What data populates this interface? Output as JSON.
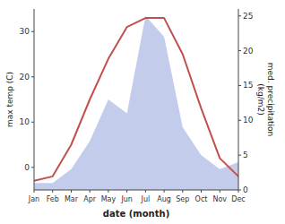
{
  "chart_data": {
    "type": "line",
    "categories": [
      "Jan",
      "Feb",
      "Mar",
      "Apr",
      "May",
      "Jun",
      "Jul",
      "Aug",
      "Sep",
      "Oct",
      "Nov",
      "Dec"
    ],
    "series": [
      {
        "type": "area",
        "axis": "y2",
        "color": "#b8c4e8",
        "values": [
          1,
          1,
          3,
          7,
          13,
          11,
          25,
          22,
          9,
          5,
          3,
          4
        ]
      },
      {
        "type": "line",
        "color": "#c0504d",
        "values": [
          -3,
          -2,
          5,
          15,
          24,
          31,
          33,
          33,
          25,
          13,
          2,
          -2
        ]
      }
    ],
    "x_label": "date (month)",
    "y_label": "max temp (C)",
    "y2_label": "med. precipitation\n(kg/m2)",
    "ylim": [
      -5,
      35
    ],
    "yticks": [
      0,
      10,
      20,
      30
    ],
    "y2lim": [
      0,
      26
    ],
    "y2ticks": [
      0,
      5,
      10,
      15,
      20,
      25
    ],
    "grid": false
  }
}
